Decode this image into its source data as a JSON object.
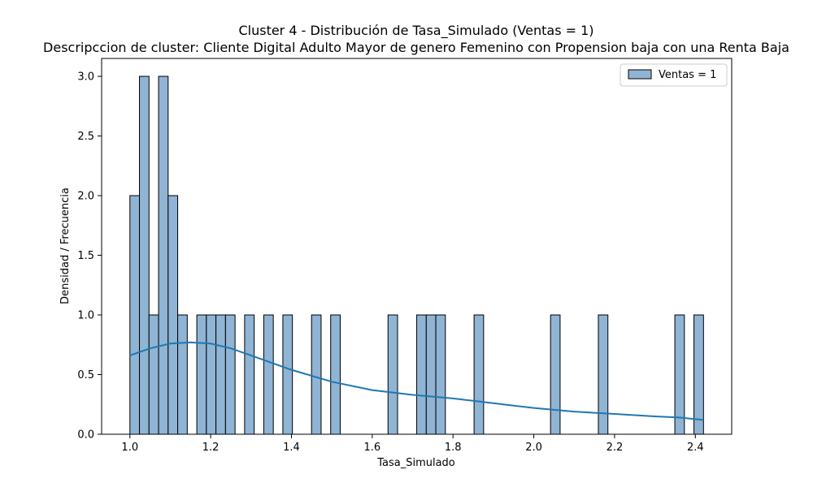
{
  "chart_data": {
    "type": "bar",
    "title": "Cluster 4 - Distribución de Tasa_Simulado (Ventas = 1)",
    "subtitle": "Descripccion de cluster: Cliente Digital Adulto Mayor de genero Femenino con Propension baja con una Renta Baja",
    "xlabel": "Tasa_Simulado",
    "ylabel": "Densidad / Frecuencia",
    "xlim": [
      0.93,
      2.49
    ],
    "ylim": [
      0,
      3.15
    ],
    "xticks": [
      1.0,
      1.2,
      1.4,
      1.6,
      1.8,
      2.0,
      2.2,
      2.4
    ],
    "xtick_labels": [
      "1.0",
      "1.2",
      "1.4",
      "1.6",
      "1.8",
      "2.0",
      "2.2",
      "2.4"
    ],
    "yticks": [
      0,
      0.5,
      1.0,
      1.5,
      2.0,
      2.5,
      3.0
    ],
    "ytick_labels": [
      "0.0",
      "0.5",
      "1.0",
      "1.5",
      "2.0",
      "2.5",
      "3.0"
    ],
    "bin_start": 1.0,
    "bin_width": 0.02367,
    "bins": [
      {
        "bin": 0,
        "count": 2
      },
      {
        "bin": 1,
        "count": 3
      },
      {
        "bin": 2,
        "count": 1
      },
      {
        "bin": 3,
        "count": 3
      },
      {
        "bin": 4,
        "count": 2
      },
      {
        "bin": 5,
        "count": 1
      },
      {
        "bin": 7,
        "count": 1
      },
      {
        "bin": 8,
        "count": 1
      },
      {
        "bin": 9,
        "count": 1
      },
      {
        "bin": 10,
        "count": 1
      },
      {
        "bin": 12,
        "count": 1
      },
      {
        "bin": 14,
        "count": 1
      },
      {
        "bin": 16,
        "count": 1
      },
      {
        "bin": 19,
        "count": 1
      },
      {
        "bin": 21,
        "count": 1
      },
      {
        "bin": 27,
        "count": 1
      },
      {
        "bin": 30,
        "count": 1
      },
      {
        "bin": 31,
        "count": 1
      },
      {
        "bin": 32,
        "count": 1
      },
      {
        "bin": 36,
        "count": 1
      },
      {
        "bin": 44,
        "count": 1
      },
      {
        "bin": 49,
        "count": 1
      },
      {
        "bin": 57,
        "count": 1
      },
      {
        "bin": 59,
        "count": 1
      }
    ],
    "kde": {
      "x": [
        1.0,
        1.05,
        1.1,
        1.15,
        1.2,
        1.25,
        1.3,
        1.35,
        1.4,
        1.5,
        1.6,
        1.7,
        1.8,
        1.9,
        2.0,
        2.1,
        2.2,
        2.3,
        2.36,
        2.42
      ],
      "y": [
        0.66,
        0.72,
        0.76,
        0.77,
        0.76,
        0.72,
        0.66,
        0.6,
        0.54,
        0.44,
        0.37,
        0.33,
        0.3,
        0.26,
        0.22,
        0.19,
        0.17,
        0.15,
        0.14,
        0.12
      ]
    },
    "legend": {
      "label": "Ventas = 1",
      "position": "top-right"
    },
    "colors": {
      "bar_fill": "#8fb4d4",
      "bar_edge": "#000000",
      "kde_line": "#1f77b4"
    },
    "grid": false
  }
}
